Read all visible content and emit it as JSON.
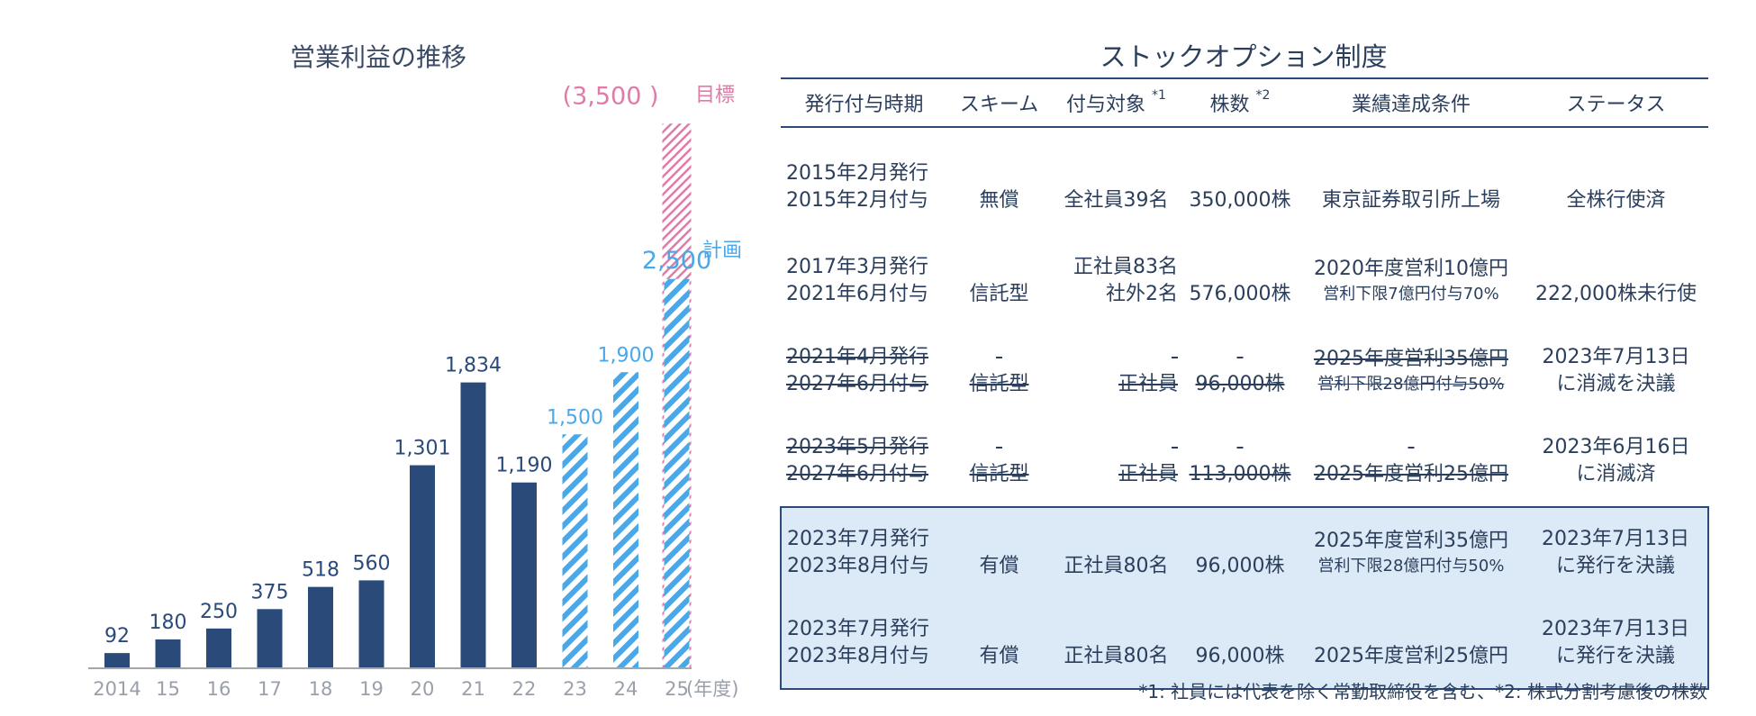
{
  "chart_data": {
    "type": "bar",
    "title": "営業利益の推移",
    "categories": [
      "2014",
      "15",
      "16",
      "17",
      "18",
      "19",
      "20",
      "21",
      "22",
      "23",
      "24",
      "25"
    ],
    "values": [
      92,
      180,
      250,
      375,
      518,
      560,
      1301,
      1834,
      1190,
      1500,
      1900,
      2500
    ],
    "value_labels": [
      "92",
      "180",
      "250",
      "375",
      "518",
      "560",
      "1,301",
      "1,834",
      "1,190",
      "1,500",
      "1,900",
      "2,500"
    ],
    "actual_count": 9,
    "target": {
      "value": 3500,
      "label": "(3,500 )",
      "name": "目標"
    },
    "plan_name": "計画",
    "xunit": "(年度)",
    "ylim": [
      0,
      3500
    ],
    "colors": {
      "actual": "#2a4a7a",
      "plan": "#4aa8e8",
      "target": "#e07aa8",
      "axis": "#888888",
      "tick": "#9aa0aa"
    }
  },
  "table": {
    "title": "ストックオプション制度",
    "headers": [
      "発行付与時期",
      "スキーム",
      "付与対象",
      "株数",
      "業績達成条件",
      "ステータス"
    ],
    "header_notes": [
      "",
      "",
      "*1",
      "*2",
      "",
      ""
    ],
    "rows": [
      {
        "period1": "2015年2月発行",
        "period2": "2015年2月付与",
        "scheme": "無償",
        "target1": "全社員39名",
        "target2": "",
        "shares": "350,000株",
        "cond1": "東京証券取引所上場",
        "cond2": "",
        "status1": "全株行使済",
        "status2": ""
      },
      {
        "period1": "2017年3月発行",
        "period2": "2021年6月付与",
        "scheme": "信託型",
        "target1": "正社員83名",
        "target2": "社外2名",
        "shares": "576,000株",
        "cond1": "2020年度営利10億円",
        "cond2": "営利下限7億円付与70%",
        "status1": "222,000株未行使",
        "status2": ""
      },
      {
        "period1": "2021年4月発行",
        "period2": "2027年6月付与",
        "scheme": "信託型",
        "target1": "正社員",
        "target2": "",
        "shares": "96,000株",
        "cond1": "2025年度営利35億円",
        "cond2": "営利下限28億円付与50%",
        "status1": "2023年7月13日",
        "status2": "に消滅を決議"
      },
      {
        "period1": "2023年5月発行",
        "period2": "2027年6月付与",
        "scheme": "信託型",
        "target1": "正社員",
        "target2": "",
        "shares": "113,000株",
        "cond1": "2025年度営利25億円",
        "cond2": "",
        "status1": "2023年6月16日",
        "status2": "に消滅済"
      },
      {
        "period1": "2023年7月発行",
        "period2": "2023年8月付与",
        "scheme": "有償",
        "target1": "正社員80名",
        "target2": "",
        "shares": "96,000株",
        "cond1": "2025年度営利35億円",
        "cond2": "営利下限28億円付与50%",
        "status1": "2023年7月13日",
        "status2": "に発行を決議"
      },
      {
        "period1": "2023年7月発行",
        "period2": "2023年8月付与",
        "scheme": "有償",
        "target1": "正社員80名",
        "target2": "",
        "shares": "96,000株",
        "cond1": "2025年度営利25億円",
        "cond2": "",
        "status1": "2023年7月13日",
        "status2": "に発行を決議"
      }
    ],
    "footnote": "*1: 社員には代表を除く常勤取締役を含む、*2: 株式分割考慮後の株数"
  }
}
